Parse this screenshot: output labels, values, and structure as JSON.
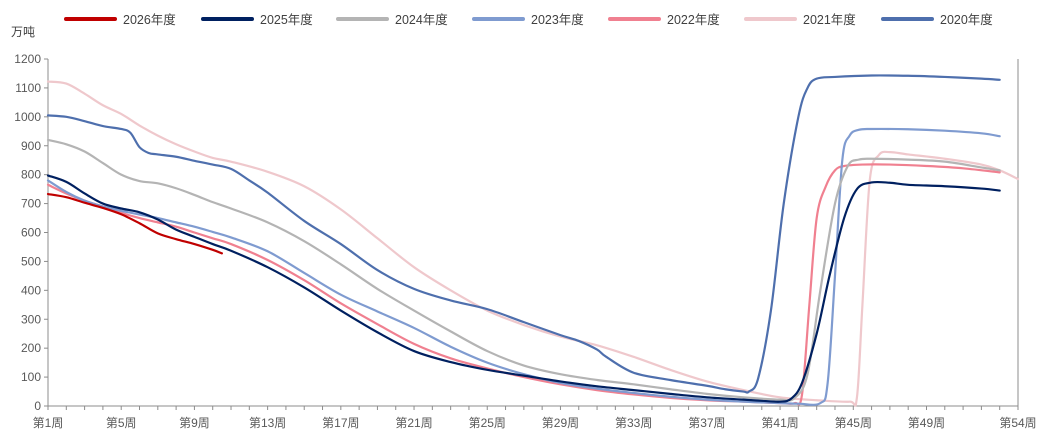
{
  "chart_data": {
    "type": "line",
    "title": "",
    "ylabel": "万吨",
    "xlabel": "",
    "ylim": [
      0,
      1200
    ],
    "yticks": [
      0,
      100,
      200,
      300,
      400,
      500,
      600,
      700,
      800,
      900,
      1000,
      1100,
      1200
    ],
    "xlim": [
      1,
      54
    ],
    "xticks": [
      {
        "x": 1,
        "label": "第1周"
      },
      {
        "x": 5,
        "label": "第5周"
      },
      {
        "x": 9,
        "label": "第9周"
      },
      {
        "x": 13,
        "label": "第13周"
      },
      {
        "x": 17,
        "label": "第17周"
      },
      {
        "x": 21,
        "label": "第21周"
      },
      {
        "x": 25,
        "label": "第25周"
      },
      {
        "x": 29,
        "label": "第29周"
      },
      {
        "x": 33,
        "label": "第33周"
      },
      {
        "x": 37,
        "label": "第37周"
      },
      {
        "x": 41,
        "label": "第41周"
      },
      {
        "x": 45,
        "label": "第45周"
      },
      {
        "x": 49,
        "label": "第49周"
      },
      {
        "x": 54,
        "label": "第54周"
      }
    ],
    "grid": false,
    "legend_position": "top",
    "series": [
      {
        "name": "2026年度",
        "color": "#c00000",
        "points": [
          [
            1,
            733
          ],
          [
            2,
            722
          ],
          [
            3,
            703
          ],
          [
            4,
            685
          ],
          [
            5,
            663
          ],
          [
            6,
            632
          ],
          [
            7,
            597
          ],
          [
            8,
            577
          ],
          [
            9,
            560
          ],
          [
            10,
            540
          ],
          [
            10.5,
            528
          ]
        ]
      },
      {
        "name": "2025年度",
        "color": "#002060",
        "points": [
          [
            1,
            797
          ],
          [
            2,
            775
          ],
          [
            3,
            735
          ],
          [
            4,
            700
          ],
          [
            5,
            683
          ],
          [
            6,
            670
          ],
          [
            7,
            645
          ],
          [
            8,
            610
          ],
          [
            9,
            585
          ],
          [
            10,
            560
          ],
          [
            11,
            537
          ],
          [
            13,
            480
          ],
          [
            15,
            410
          ],
          [
            17,
            330
          ],
          [
            19,
            255
          ],
          [
            21,
            190
          ],
          [
            23,
            152
          ],
          [
            25,
            125
          ],
          [
            27,
            105
          ],
          [
            29,
            85
          ],
          [
            31,
            68
          ],
          [
            33,
            55
          ],
          [
            35,
            42
          ],
          [
            37,
            30
          ],
          [
            39,
            22
          ],
          [
            40,
            18
          ],
          [
            41,
            15
          ],
          [
            41.6,
            25
          ],
          [
            42.2,
            80
          ],
          [
            43,
            250
          ],
          [
            43.7,
            450
          ],
          [
            44.5,
            650
          ],
          [
            45.2,
            750
          ],
          [
            46,
            773
          ],
          [
            47,
            772
          ],
          [
            48,
            765
          ],
          [
            50,
            760
          ],
          [
            52,
            752
          ],
          [
            53,
            745
          ]
        ]
      },
      {
        "name": "2024年度",
        "color": "#b4b4b4",
        "points": [
          [
            1,
            920
          ],
          [
            2,
            905
          ],
          [
            3,
            880
          ],
          [
            4,
            840
          ],
          [
            5,
            800
          ],
          [
            6,
            778
          ],
          [
            7,
            770
          ],
          [
            8,
            753
          ],
          [
            9,
            730
          ],
          [
            10,
            705
          ],
          [
            11,
            683
          ],
          [
            13,
            635
          ],
          [
            15,
            570
          ],
          [
            17,
            490
          ],
          [
            19,
            405
          ],
          [
            21,
            330
          ],
          [
            23,
            258
          ],
          [
            25,
            190
          ],
          [
            27,
            140
          ],
          [
            29,
            110
          ],
          [
            31,
            90
          ],
          [
            33,
            75
          ],
          [
            35,
            58
          ],
          [
            37,
            42
          ],
          [
            39,
            30
          ],
          [
            41,
            22
          ],
          [
            41.8,
            28
          ],
          [
            42.5,
            110
          ],
          [
            43.2,
            400
          ],
          [
            44,
            700
          ],
          [
            44.7,
            830
          ],
          [
            45.3,
            852
          ],
          [
            46,
            855
          ],
          [
            48,
            852
          ],
          [
            50,
            845
          ],
          [
            52,
            825
          ],
          [
            53,
            815
          ]
        ]
      },
      {
        "name": "2023年度",
        "color": "#7f9bd0",
        "points": [
          [
            1,
            780
          ],
          [
            2,
            740
          ],
          [
            3,
            710
          ],
          [
            4,
            690
          ],
          [
            5,
            675
          ],
          [
            6,
            662
          ],
          [
            7,
            650
          ],
          [
            8,
            635
          ],
          [
            9,
            620
          ],
          [
            10,
            602
          ],
          [
            11,
            583
          ],
          [
            13,
            535
          ],
          [
            15,
            460
          ],
          [
            17,
            385
          ],
          [
            19,
            327
          ],
          [
            21,
            270
          ],
          [
            23,
            205
          ],
          [
            25,
            150
          ],
          [
            27,
            110
          ],
          [
            29,
            80
          ],
          [
            31,
            60
          ],
          [
            33,
            45
          ],
          [
            35,
            32
          ],
          [
            37,
            22
          ],
          [
            39,
            15
          ],
          [
            41,
            10
          ],
          [
            42,
            8
          ],
          [
            43.2,
            10
          ],
          [
            43.6,
            80
          ],
          [
            44,
            450
          ],
          [
            44.4,
            850
          ],
          [
            44.8,
            935
          ],
          [
            45.3,
            955
          ],
          [
            46,
            958
          ],
          [
            48,
            957
          ],
          [
            50,
            952
          ],
          [
            52,
            943
          ],
          [
            53,
            933
          ]
        ]
      },
      {
        "name": "2022年度",
        "color": "#f08090",
        "points": [
          [
            1,
            765
          ],
          [
            2,
            735
          ],
          [
            3,
            710
          ],
          [
            4,
            690
          ],
          [
            5,
            668
          ],
          [
            6,
            650
          ],
          [
            7,
            635
          ],
          [
            8,
            620
          ],
          [
            9,
            600
          ],
          [
            10,
            580
          ],
          [
            11,
            560
          ],
          [
            13,
            505
          ],
          [
            15,
            435
          ],
          [
            17,
            355
          ],
          [
            19,
            283
          ],
          [
            21,
            215
          ],
          [
            23,
            165
          ],
          [
            25,
            130
          ],
          [
            27,
            100
          ],
          [
            29,
            75
          ],
          [
            31,
            55
          ],
          [
            33,
            40
          ],
          [
            35,
            28
          ],
          [
            37,
            20
          ],
          [
            39,
            15
          ],
          [
            41,
            10
          ],
          [
            41.8,
            10
          ],
          [
            42.2,
            40
          ],
          [
            42.6,
            350
          ],
          [
            43,
            650
          ],
          [
            43.5,
            760
          ],
          [
            44,
            815
          ],
          [
            44.5,
            830
          ],
          [
            45.5,
            835
          ],
          [
            47,
            835
          ],
          [
            49,
            830
          ],
          [
            51,
            822
          ],
          [
            53,
            808
          ]
        ]
      },
      {
        "name": "2021年度",
        "color": "#efc8cc",
        "points": [
          [
            1,
            1122
          ],
          [
            2,
            1115
          ],
          [
            3,
            1080
          ],
          [
            4,
            1040
          ],
          [
            5,
            1010
          ],
          [
            6,
            970
          ],
          [
            7,
            935
          ],
          [
            8,
            905
          ],
          [
            9,
            880
          ],
          [
            10,
            858
          ],
          [
            11,
            845
          ],
          [
            13,
            810
          ],
          [
            15,
            760
          ],
          [
            17,
            680
          ],
          [
            19,
            580
          ],
          [
            21,
            480
          ],
          [
            23,
            400
          ],
          [
            25,
            330
          ],
          [
            27,
            280
          ],
          [
            29,
            240
          ],
          [
            31,
            210
          ],
          [
            33,
            170
          ],
          [
            35,
            125
          ],
          [
            37,
            85
          ],
          [
            39,
            55
          ],
          [
            41,
            30
          ],
          [
            43,
            20
          ],
          [
            44.8,
            15
          ],
          [
            45.2,
            30
          ],
          [
            45.5,
            350
          ],
          [
            45.9,
            780
          ],
          [
            46.4,
            868
          ],
          [
            47,
            878
          ],
          [
            48,
            870
          ],
          [
            50,
            855
          ],
          [
            52,
            835
          ],
          [
            53,
            815
          ],
          [
            54,
            785
          ]
        ]
      },
      {
        "name": "2020年度",
        "color": "#4e6fad",
        "points": [
          [
            1,
            1005
          ],
          [
            2,
            1000
          ],
          [
            3,
            985
          ],
          [
            4,
            968
          ],
          [
            5,
            958
          ],
          [
            5.5,
            945
          ],
          [
            6,
            895
          ],
          [
            6.5,
            875
          ],
          [
            7,
            870
          ],
          [
            8,
            862
          ],
          [
            9,
            848
          ],
          [
            10,
            835
          ],
          [
            11,
            820
          ],
          [
            12,
            780
          ],
          [
            13,
            738
          ],
          [
            15,
            640
          ],
          [
            17,
            560
          ],
          [
            19,
            470
          ],
          [
            21,
            405
          ],
          [
            23,
            365
          ],
          [
            25,
            335
          ],
          [
            27,
            290
          ],
          [
            29,
            245
          ],
          [
            30,
            225
          ],
          [
            31,
            195
          ],
          [
            31.5,
            170
          ],
          [
            33,
            115
          ],
          [
            35,
            90
          ],
          [
            37,
            70
          ],
          [
            38,
            58
          ],
          [
            39,
            50
          ],
          [
            39.3,
            50
          ],
          [
            39.8,
            95
          ],
          [
            40.5,
            330
          ],
          [
            41.2,
            700
          ],
          [
            42,
            1000
          ],
          [
            42.5,
            1100
          ],
          [
            43,
            1132
          ],
          [
            44,
            1138
          ],
          [
            46,
            1143
          ],
          [
            48,
            1142
          ],
          [
            50,
            1138
          ],
          [
            52,
            1132
          ],
          [
            53,
            1128
          ]
        ]
      }
    ]
  }
}
